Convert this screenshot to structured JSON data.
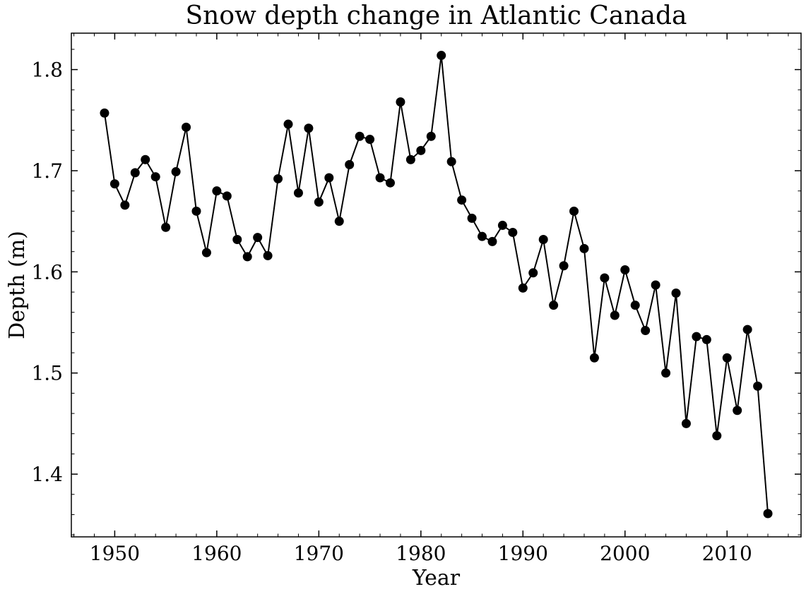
{
  "chart_data": {
    "type": "line",
    "title": "Snow depth change in Atlantic Canada",
    "xlabel": "Year",
    "ylabel": "Depth (m)",
    "xlim": [
      1945.75,
      2017.25
    ],
    "ylim": [
      1.338,
      1.836
    ],
    "xticks": [
      1950,
      1960,
      1970,
      1980,
      1990,
      2000,
      2010
    ],
    "xtick_labels": [
      "1950",
      "1960",
      "1970",
      "1980",
      "1990",
      "2000",
      "2010"
    ],
    "yticks": [
      1.4,
      1.5,
      1.6,
      1.7,
      1.8
    ],
    "ytick_labels": [
      "1.4",
      "1.5",
      "1.6",
      "1.7",
      "1.8"
    ],
    "grid": false,
    "legend": "none",
    "series": [
      {
        "color": "#000000",
        "marker": "circle",
        "x": [
          1949,
          1950,
          1951,
          1952,
          1953,
          1954,
          1955,
          1956,
          1957,
          1958,
          1959,
          1960,
          1961,
          1962,
          1963,
          1964,
          1965,
          1966,
          1967,
          1968,
          1969,
          1970,
          1971,
          1972,
          1973,
          1974,
          1975,
          1976,
          1977,
          1978,
          1979,
          1980,
          1981,
          1982,
          1983,
          1984,
          1985,
          1986,
          1987,
          1988,
          1989,
          1990,
          1991,
          1992,
          1993,
          1994,
          1995,
          1996,
          1997,
          1998,
          1999,
          2000,
          2001,
          2002,
          2003,
          2004,
          2005,
          2006,
          2007,
          2008,
          2009,
          2010,
          2011,
          2012,
          2013,
          2014
        ],
        "y": [
          1.757,
          1.687,
          1.666,
          1.698,
          1.711,
          1.694,
          1.644,
          1.699,
          1.743,
          1.66,
          1.619,
          1.68,
          1.675,
          1.632,
          1.615,
          1.634,
          1.616,
          1.692,
          1.746,
          1.678,
          1.742,
          1.669,
          1.693,
          1.65,
          1.706,
          1.734,
          1.731,
          1.693,
          1.688,
          1.768,
          1.711,
          1.72,
          1.734,
          1.814,
          1.709,
          1.671,
          1.653,
          1.635,
          1.63,
          1.646,
          1.639,
          1.584,
          1.599,
          1.632,
          1.567,
          1.606,
          1.66,
          1.623,
          1.515,
          1.594,
          1.557,
          1.602,
          1.567,
          1.542,
          1.587,
          1.5,
          1.579,
          1.45,
          1.536,
          1.533,
          1.438,
          1.515,
          1.463,
          1.543,
          1.487,
          1.361
        ]
      }
    ]
  }
}
